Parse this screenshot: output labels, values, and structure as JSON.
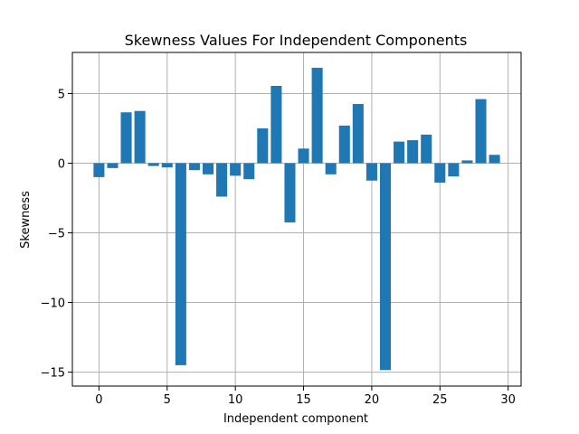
{
  "chart_data": {
    "type": "bar",
    "title": "Skewness Values For Independent Components",
    "xlabel": "Independent component",
    "ylabel": "Skewness",
    "x": [
      0,
      1,
      2,
      3,
      4,
      5,
      6,
      7,
      8,
      9,
      10,
      11,
      12,
      13,
      14,
      15,
      16,
      17,
      18,
      19,
      20,
      21,
      22,
      23,
      24,
      25,
      26,
      27,
      28,
      29
    ],
    "values": [
      -1.0,
      -0.35,
      3.65,
      3.75,
      -0.2,
      -0.3,
      -14.5,
      -0.5,
      -0.8,
      -2.4,
      -0.9,
      -1.15,
      2.5,
      5.55,
      -4.25,
      1.05,
      6.85,
      -0.8,
      2.7,
      4.25,
      -1.25,
      -14.85,
      1.55,
      1.65,
      2.05,
      -1.4,
      -0.95,
      0.2,
      4.6,
      0.6
    ],
    "xlim": [
      -1.95,
      30.95
    ],
    "ylim": [
      -16.0,
      7.95
    ],
    "xticks": [
      0,
      5,
      10,
      15,
      20,
      25,
      30
    ],
    "xtick_labels": [
      "0",
      "5",
      "10",
      "15",
      "20",
      "25",
      "30"
    ],
    "yticks": [
      5,
      0,
      -5,
      -10,
      -15
    ],
    "ytick_labels": [
      "5",
      "0",
      "−5",
      "−10",
      "−15"
    ],
    "grid": true,
    "bar_color": "#1f77b4",
    "grid_color": "#b0b0b0"
  }
}
